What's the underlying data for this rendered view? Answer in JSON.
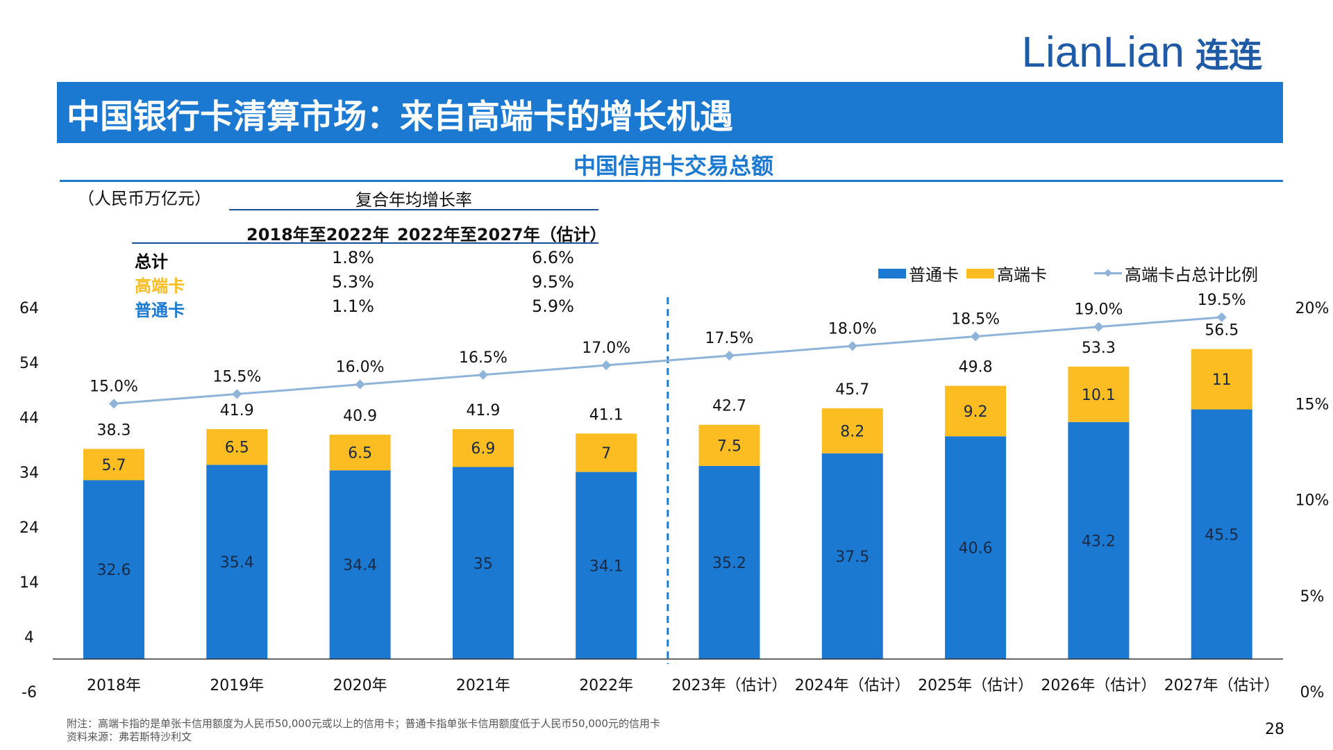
{
  "header": {
    "logo_text": "LianLian",
    "logo_cn": "连连",
    "title": "中国银行卡清算市场：来自高端卡的增长机遇",
    "subtitle": "中国信用卡交易总额"
  },
  "colors": {
    "accent": "#1b79d1",
    "ordinary": "#1b79d1",
    "premium": "#fbbd22",
    "ratio_line": "#8fb4d9",
    "logo": "#1f5aa6"
  },
  "cagr_table": {
    "unit": "（人民币万亿元）",
    "heading": "复合年均增长率",
    "columns": [
      "2018年至2022年",
      "2022年至2027年（估计）"
    ],
    "rows": [
      {
        "label": "总计",
        "color": "#000000",
        "v1": "1.8%",
        "v2": "6.6%"
      },
      {
        "label": "高端卡",
        "color": "#fbbd22",
        "v1": "5.3%",
        "v2": "9.5%"
      },
      {
        "label": "普通卡",
        "color": "#1b79d1",
        "v1": "1.1%",
        "v2": "5.9%"
      }
    ]
  },
  "legend": {
    "ordinary": "普通卡",
    "premium": "高端卡",
    "ratio": "高端卡占总计比例"
  },
  "chart_data": {
    "type": "bar",
    "stacked": true,
    "categories": [
      "2018年",
      "2019年",
      "2020年",
      "2021年",
      "2022年",
      "2023年（估计）",
      "2024年（估计）",
      "2025年（估计）",
      "2026年（估计）",
      "2027年（估计）"
    ],
    "series": [
      {
        "name": "普通卡",
        "values": [
          32.6,
          35.4,
          34.4,
          35,
          34.1,
          35.2,
          37.5,
          40.6,
          43.2,
          45.5
        ]
      },
      {
        "name": "高端卡",
        "values": [
          5.7,
          6.5,
          6.5,
          6.9,
          7,
          7.5,
          8.2,
          9.2,
          10.1,
          11
        ]
      }
    ],
    "series_labels": {
      "ordinary": [
        "32.6",
        "35.4",
        "34.4",
        "35",
        "34.1",
        "35.2",
        "37.5",
        "40.6",
        "43.2",
        "45.5"
      ],
      "premium": [
        "5.7",
        "6.5",
        "6.5",
        "6.9",
        "7",
        "7.5",
        "8.2",
        "9.2",
        "10.1",
        "11"
      ]
    },
    "totals": [
      "38.3",
      "41.9",
      "40.9",
      "41.9",
      "41.1",
      "42.7",
      "45.7",
      "49.8",
      "53.3",
      "56.5"
    ],
    "ratio_line": {
      "name": "高端卡占总计比例",
      "values": [
        15.0,
        15.5,
        16.0,
        16.5,
        17.0,
        17.5,
        18.0,
        18.5,
        19.0,
        19.5
      ],
      "labels": [
        "15.0%",
        "15.5%",
        "16.0%",
        "16.5%",
        "17.0%",
        "17.5%",
        "18.0%",
        "18.5%",
        "19.0%",
        "19.5%"
      ]
    },
    "y_left": {
      "ticks": [
        "-6",
        "4",
        "14",
        "24",
        "34",
        "44",
        "54",
        "64"
      ],
      "ylim": [
        -6,
        64
      ]
    },
    "y_right": {
      "ticks": [
        "0%",
        "5%",
        "10%",
        "15%",
        "20%"
      ],
      "ylim": [
        0,
        20
      ]
    },
    "divider_after_index": 4,
    "legend_position": "top-right"
  },
  "footer": {
    "note": "附注：高端卡指的是单张卡信用额度为人民币50,000元或以上的信用卡；普通卡指单张卡信用额度低于人民币50,000元的信用卡",
    "source": "资料来源：弗若斯特沙利文",
    "page": "28"
  }
}
